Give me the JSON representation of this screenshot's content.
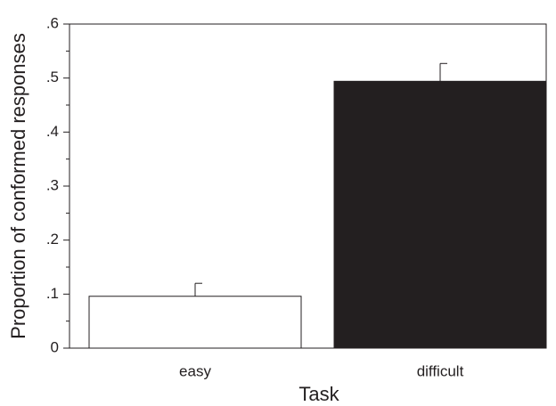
{
  "chart_data": {
    "type": "bar",
    "xlabel": "Task",
    "ylabel": "Proportion of conformed responses",
    "categories": [
      "easy",
      "difficult"
    ],
    "values": [
      0.096,
      0.494
    ],
    "errors": [
      0.024,
      0.033
    ],
    "colors": [
      "#ffffff",
      "#231f20"
    ],
    "ylim": [
      0,
      0.6
    ],
    "yticks": [
      0,
      {
        "value": 0.1,
        "label": ".1"
      },
      {
        "value": 0.2,
        "label": ".2"
      },
      {
        "value": 0.3,
        "label": ".3"
      },
      {
        "value": 0.4,
        "label": ".4"
      },
      {
        "value": 0.5,
        "label": ".5"
      },
      {
        "value": 0.6,
        "label": ".6"
      }
    ],
    "yminor_ticks": [
      0.05,
      0.15,
      0.25,
      0.35,
      0.45,
      0.55
    ]
  }
}
